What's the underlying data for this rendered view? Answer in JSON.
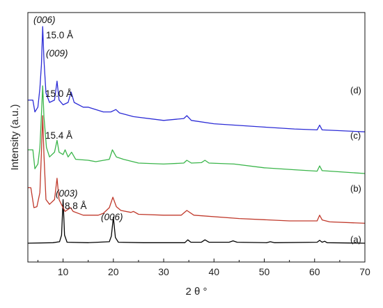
{
  "chart_data": {
    "type": "line",
    "title": "",
    "xlabel": "2 θ °",
    "ylabel": "Intensity (a.u.)",
    "xlim": [
      3,
      70
    ],
    "xticks": [
      10,
      20,
      30,
      40,
      50,
      60,
      70
    ],
    "y_ticks_shown": false,
    "grid": false,
    "series": [
      {
        "name": "(a)",
        "color": "#000000",
        "points": [
          [
            3,
            0.03
          ],
          [
            8,
            0.04
          ],
          [
            9.3,
            0.06
          ],
          [
            9.7,
            0.2
          ],
          [
            10.0,
            0.95
          ],
          [
            10.3,
            0.2
          ],
          [
            10.8,
            0.05
          ],
          [
            15,
            0.04
          ],
          [
            19.2,
            0.06
          ],
          [
            19.6,
            0.18
          ],
          [
            20.0,
            0.58
          ],
          [
            20.4,
            0.15
          ],
          [
            21,
            0.05
          ],
          [
            26,
            0.04
          ],
          [
            34.2,
            0.04
          ],
          [
            34.8,
            0.1
          ],
          [
            35.4,
            0.05
          ],
          [
            37.5,
            0.05
          ],
          [
            38.2,
            0.1
          ],
          [
            39,
            0.05
          ],
          [
            43,
            0.05
          ],
          [
            43.8,
            0.08
          ],
          [
            44.6,
            0.05
          ],
          [
            50.5,
            0.04
          ],
          [
            51.2,
            0.06
          ],
          [
            52,
            0.04
          ],
          [
            60.5,
            0.05
          ],
          [
            61,
            0.09
          ],
          [
            61.5,
            0.05
          ],
          [
            62,
            0.07
          ],
          [
            62.5,
            0.04
          ],
          [
            70,
            0.03
          ]
        ]
      },
      {
        "name": "(b)",
        "color": "#c0392b",
        "points": [
          [
            3,
            1.2
          ],
          [
            3.6,
            1.2
          ],
          [
            4.2,
            0.78
          ],
          [
            4.8,
            0.8
          ],
          [
            5.4,
            1.1
          ],
          [
            5.7,
            1.95
          ],
          [
            5.95,
            2.72
          ],
          [
            6.2,
            1.9
          ],
          [
            6.6,
            0.95
          ],
          [
            7.3,
            0.85
          ],
          [
            8.3,
            0.95
          ],
          [
            8.8,
            1.4
          ],
          [
            9.2,
            0.95
          ],
          [
            9.8,
            0.82
          ],
          [
            10.4,
            0.7
          ],
          [
            11.5,
            0.78
          ],
          [
            12,
            0.7
          ],
          [
            14,
            0.62
          ],
          [
            17,
            0.62
          ],
          [
            18,
            0.66
          ],
          [
            19.2,
            0.78
          ],
          [
            19.9,
            1.0
          ],
          [
            20.6,
            0.8
          ],
          [
            21.5,
            0.72
          ],
          [
            23.5,
            0.68
          ],
          [
            24,
            0.7
          ],
          [
            25,
            0.64
          ],
          [
            30,
            0.62
          ],
          [
            33.5,
            0.62
          ],
          [
            34.6,
            0.72
          ],
          [
            36,
            0.62
          ],
          [
            45,
            0.55
          ],
          [
            55,
            0.5
          ],
          [
            60.5,
            0.5
          ],
          [
            61.0,
            0.62
          ],
          [
            61.5,
            0.52
          ],
          [
            63,
            0.48
          ],
          [
            70,
            0.45
          ]
        ]
      },
      {
        "name": "(c)",
        "color": "#3ab54a",
        "points": [
          [
            3,
            2.0
          ],
          [
            4,
            2.0
          ],
          [
            4.4,
            1.6
          ],
          [
            5,
            1.7
          ],
          [
            5.4,
            2.05
          ],
          [
            5.7,
            2.75
          ],
          [
            5.95,
            3.35
          ],
          [
            6.2,
            2.7
          ],
          [
            6.7,
            2.05
          ],
          [
            7.3,
            1.85
          ],
          [
            8.3,
            1.95
          ],
          [
            8.8,
            2.2
          ],
          [
            9.2,
            1.95
          ],
          [
            10,
            1.9
          ],
          [
            10.4,
            2.0
          ],
          [
            11,
            1.85
          ],
          [
            11.7,
            1.95
          ],
          [
            12.5,
            1.8
          ],
          [
            15,
            1.78
          ],
          [
            16.5,
            1.75
          ],
          [
            19.2,
            1.8
          ],
          [
            19.8,
            2.0
          ],
          [
            20.6,
            1.85
          ],
          [
            22,
            1.8
          ],
          [
            25,
            1.72
          ],
          [
            30,
            1.7
          ],
          [
            34,
            1.72
          ],
          [
            34.6,
            1.78
          ],
          [
            35.5,
            1.72
          ],
          [
            37.5,
            1.73
          ],
          [
            38.2,
            1.78
          ],
          [
            39,
            1.72
          ],
          [
            44,
            1.7
          ],
          [
            50,
            1.62
          ],
          [
            56,
            1.58
          ],
          [
            60.5,
            1.55
          ],
          [
            61.0,
            1.66
          ],
          [
            61.5,
            1.56
          ],
          [
            70,
            1.5
          ]
        ]
      },
      {
        "name": "(d)",
        "color": "#2b2bd6",
        "points": [
          [
            3,
            3.05
          ],
          [
            4,
            3.05
          ],
          [
            4.4,
            2.8
          ],
          [
            5,
            2.9
          ],
          [
            5.4,
            3.3
          ],
          [
            5.7,
            3.8
          ],
          [
            5.95,
            4.6
          ],
          [
            6.2,
            3.9
          ],
          [
            6.6,
            3.2
          ],
          [
            7.3,
            3.0
          ],
          [
            8.3,
            3.05
          ],
          [
            8.8,
            3.45
          ],
          [
            9.2,
            3.05
          ],
          [
            10,
            2.95
          ],
          [
            11,
            3.0
          ],
          [
            11.6,
            3.22
          ],
          [
            12.2,
            3.0
          ],
          [
            14,
            2.9
          ],
          [
            15,
            2.9
          ],
          [
            18,
            2.8
          ],
          [
            19.5,
            2.8
          ],
          [
            20.5,
            2.85
          ],
          [
            21.2,
            2.78
          ],
          [
            24,
            2.7
          ],
          [
            30,
            2.62
          ],
          [
            34,
            2.66
          ],
          [
            34.6,
            2.72
          ],
          [
            35.5,
            2.62
          ],
          [
            40,
            2.55
          ],
          [
            50,
            2.48
          ],
          [
            56,
            2.44
          ],
          [
            60.5,
            2.42
          ],
          [
            61.0,
            2.52
          ],
          [
            61.5,
            2.42
          ],
          [
            70,
            2.38
          ]
        ]
      }
    ],
    "annotations": {
      "d_006": "(006)",
      "d_006_spacing": "15.0 Å",
      "d_009": "(009)",
      "c_spacing": "15.0 Å",
      "b_spacing": "15.4 Å",
      "a_003": "(003)",
      "a_003_spacing": "8.8 Å",
      "a_006": "(006)"
    }
  }
}
